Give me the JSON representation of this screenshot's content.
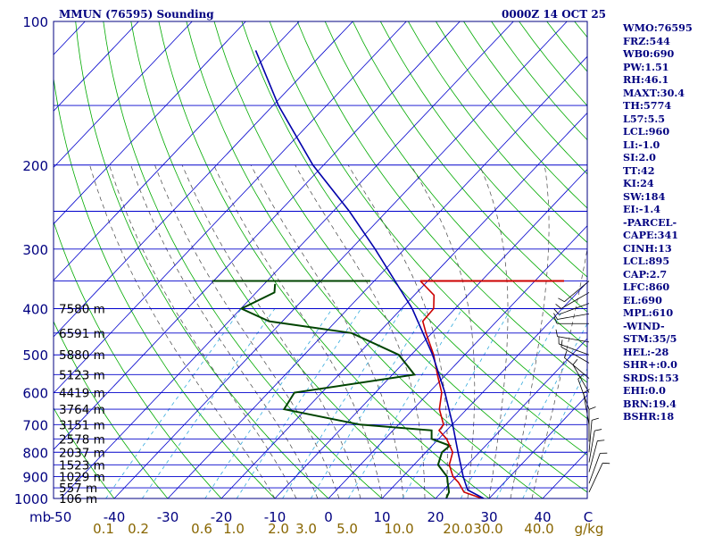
{
  "header": {
    "station": "MMUN (76595) Sounding",
    "time": "0000Z 14 OCT 25"
  },
  "indices": [
    "WMO:76595",
    "FRZ:544",
    "WB0:690",
    "PW:1.51",
    "RH:46.1",
    "MAXT:30.4",
    "TH:5774",
    "L57:5.5",
    "LCL:960",
    "LI:-1.0",
    "SI:2.0",
    "TT:42",
    "KI:24",
    "SW:184",
    "EI:-1.4",
    "-PARCEL-",
    "CAPE:341",
    "CINH:13",
    "LCL:895",
    "CAP:2.7",
    "LFC:860",
    "EL:690",
    "MPL:610",
    "-WIND-",
    "STM:35/5",
    "HEL:-28",
    "SHR+:0.0",
    "SRDS:153",
    "EHI:0.0",
    "BRN:19.4",
    "BSHR:18"
  ],
  "colors": {
    "frame": "#000080",
    "isobar": "#0000cc",
    "isotherm": "#0000cc",
    "dry_adiabat": "#00aa00",
    "moist_adiabat": "#444444",
    "mixing_ratio": "#33aadd",
    "temperature": "#cc0000",
    "dewpoint": "#004400",
    "parcel": "#0000aa",
    "wind": "#000000",
    "axis_text": "#000080",
    "mixratio_text": "#886600"
  },
  "chart_data": {
    "type": "skew-t log-p sounding",
    "title": "MMUN (76595) Sounding",
    "yaxis": {
      "label": "mb",
      "scale": "log",
      "range": [
        1000,
        100
      ],
      "tick_labels": [
        "100",
        "200",
        "300",
        "400",
        "500",
        "600",
        "700",
        "800",
        "900",
        "1000"
      ]
    },
    "xaxis": {
      "label": "C",
      "tick_labels": [
        "-50",
        "-40",
        "-30",
        "-20",
        "-10",
        "0",
        "10",
        "20",
        "30",
        "40"
      ]
    },
    "mixing_ratio_axis": {
      "label": "g/kg",
      "tick_labels": [
        "0.1",
        "0.2",
        "0.6",
        "1.0",
        "2.0",
        "3.0",
        "5.0",
        "10.0",
        "20.0",
        "30.0",
        "40.0"
      ]
    },
    "height_labels": [
      {
        "p": 400,
        "label": "7580 m"
      },
      {
        "p": 450,
        "label": "6591 m"
      },
      {
        "p": 500,
        "label": "5880 m"
      },
      {
        "p": 550,
        "label": "5123 m"
      },
      {
        "p": 600,
        "label": "4419 m"
      },
      {
        "p": 650,
        "label": "3764 m"
      },
      {
        "p": 700,
        "label": "3151 m"
      },
      {
        "p": 750,
        "label": "2578 m"
      },
      {
        "p": 800,
        "label": "2037 m"
      },
      {
        "p": 850,
        "label": "1523 m"
      },
      {
        "p": 900,
        "label": "1029 m"
      },
      {
        "p": 950,
        "label": "557 m"
      },
      {
        "p": 1000,
        "label": "106 m"
      }
    ],
    "temperature": [
      {
        "p": 1000,
        "t": 28.7
      },
      {
        "p": 970,
        "t": 24.2
      },
      {
        "p": 925,
        "t": 21.4
      },
      {
        "p": 900,
        "t": 19.4
      },
      {
        "p": 850,
        "t": 16.6
      },
      {
        "p": 800,
        "t": 15.0
      },
      {
        "p": 775,
        "t": 13.3
      },
      {
        "p": 750,
        "t": 11.5
      },
      {
        "p": 720,
        "t": 8.6
      },
      {
        "p": 700,
        "t": 8.4
      },
      {
        "p": 650,
        "t": 4.9
      },
      {
        "p": 600,
        "t": 2.4
      },
      {
        "p": 550,
        "t": -1.6
      },
      {
        "p": 500,
        "t": -5.8
      },
      {
        "p": 450,
        "t": -11.1
      },
      {
        "p": 425,
        "t": -13.8
      },
      {
        "p": 400,
        "t": -14.0
      },
      {
        "p": 375,
        "t": -16.3
      },
      {
        "p": 350,
        "t": -21.4
      }
    ],
    "dewpoint": [
      {
        "p": 1000,
        "td": 22.0
      },
      {
        "p": 970,
        "td": 21.4
      },
      {
        "p": 925,
        "td": 19.4
      },
      {
        "p": 900,
        "td": 18.3
      },
      {
        "p": 850,
        "td": 14.5
      },
      {
        "p": 800,
        "td": 13.0
      },
      {
        "p": 775,
        "td": 13.3
      },
      {
        "p": 750,
        "td": 8.7
      },
      {
        "p": 720,
        "td": 7.2
      },
      {
        "p": 700,
        "td": -7.2
      },
      {
        "p": 650,
        "td": -24.1
      },
      {
        "p": 600,
        "td": -25.1
      },
      {
        "p": 550,
        "td": -5.9
      },
      {
        "p": 500,
        "td": -12.3
      },
      {
        "p": 450,
        "td": -25.0
      },
      {
        "p": 425,
        "td": -42.5
      },
      {
        "p": 400,
        "td": -49.9
      },
      {
        "p": 370,
        "td": -46.6
      },
      {
        "p": 355,
        "td": -48.0
      }
    ],
    "parcel": [
      {
        "p": 1000,
        "t": 29.0
      },
      {
        "p": 960,
        "t": 24.5
      },
      {
        "p": 900,
        "t": 21.3
      },
      {
        "p": 800,
        "t": 16.0
      },
      {
        "p": 700,
        "t": 10.1
      },
      {
        "p": 600,
        "t": 3.0
      },
      {
        "p": 500,
        "t": -6.0
      },
      {
        "p": 400,
        "t": -18.0
      },
      {
        "p": 300,
        "t": -35.5
      },
      {
        "p": 250,
        "t": -47.0
      },
      {
        "p": 200,
        "t": -62.0
      },
      {
        "p": 150,
        "t": -79.0
      },
      {
        "p": 115,
        "t": -93.0
      }
    ]
  }
}
